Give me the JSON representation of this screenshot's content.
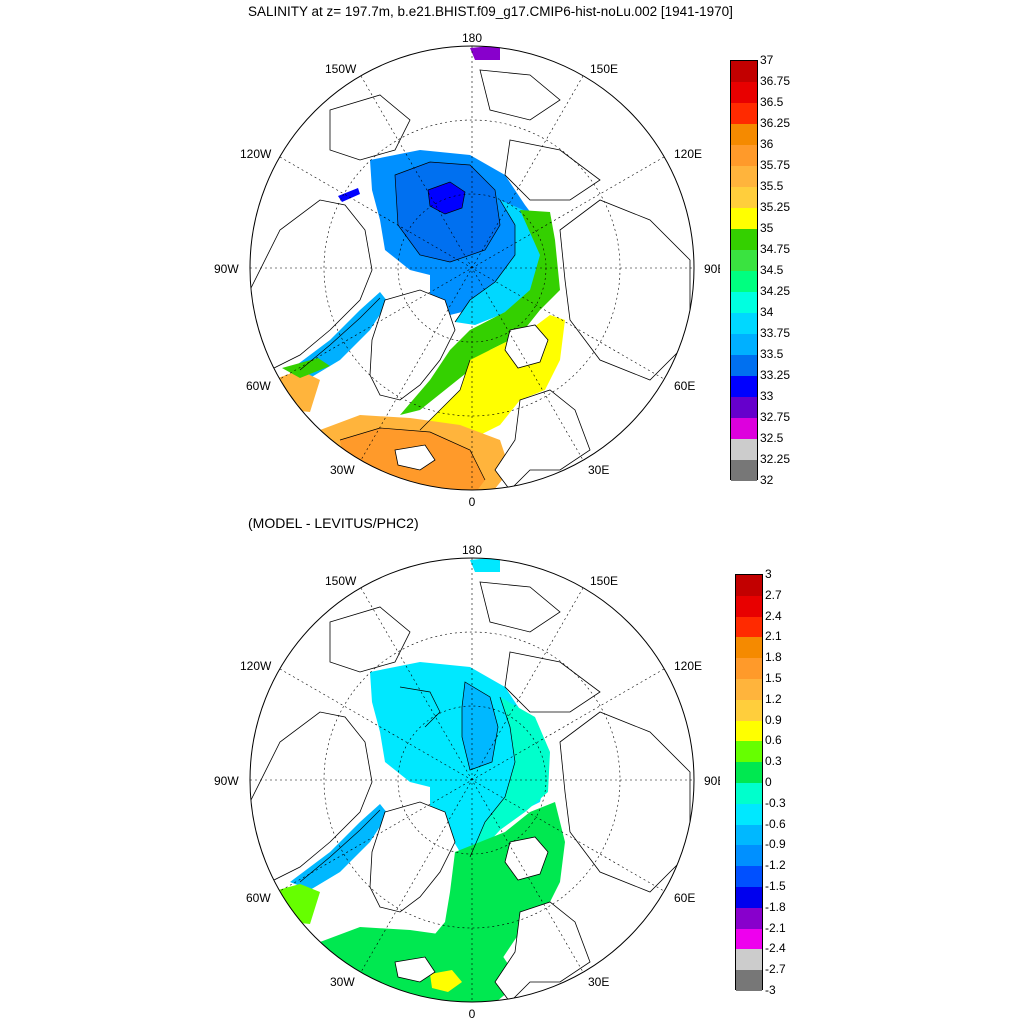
{
  "top_panel": {
    "title": "SALINITY at z= 197.7m, b.e21.BHIST.f09_g17.CMIP6-hist-noLu.002 [1941-1970]",
    "lon_labels": [
      "180",
      "150E",
      "120E",
      "90E",
      "60E",
      "30E",
      "0",
      "30W",
      "60W",
      "90W",
      "120W",
      "150W"
    ],
    "colorbar": {
      "labels": [
        "37",
        "36.75",
        "36.5",
        "36.25",
        "36",
        "35.75",
        "35.5",
        "35.25",
        "35",
        "34.75",
        "34.5",
        "34.25",
        "34",
        "33.75",
        "33.5",
        "33.25",
        "33",
        "32.75",
        "32.5",
        "32.25",
        "32"
      ],
      "colors": [
        "#c20000",
        "#e80000",
        "#ff2a00",
        "#f58a00",
        "#ff9a2a",
        "#ffb43c",
        "#ffce3c",
        "#ffff00",
        "#34d000",
        "#3ae340",
        "#00ff80",
        "#00ffe0",
        "#00d8ff",
        "#00b0ff",
        "#0070f0",
        "#0000ff",
        "#6600cc",
        "#dd00dd",
        "#cccccc",
        "#777777"
      ]
    }
  },
  "bottom_panel": {
    "title": "(MODEL - LEVITUS/PHC2)",
    "lon_labels": [
      "180",
      "150E",
      "120E",
      "90E",
      "60E",
      "30E",
      "0",
      "30W",
      "60W",
      "90W",
      "120W",
      "150W"
    ],
    "colorbar": {
      "labels": [
        "3",
        "2.7",
        "2.4",
        "2.1",
        "1.8",
        "1.5",
        "1.2",
        "0.9",
        "0.6",
        "0.3",
        "0",
        "-0.3",
        "-0.6",
        "-0.9",
        "-1.2",
        "-1.5",
        "-1.8",
        "-2.1",
        "-2.4",
        "-2.7",
        "-3"
      ],
      "colors": [
        "#c20000",
        "#e80000",
        "#ff2a00",
        "#f58a00",
        "#ff9a2a",
        "#ffb43c",
        "#ffce3c",
        "#ffff00",
        "#66ff00",
        "#00e850",
        "#00ffcc",
        "#00e8ff",
        "#00b8ff",
        "#0090ff",
        "#0050ff",
        "#0000ee",
        "#8800cc",
        "#ee00ee",
        "#cccccc",
        "#777777"
      ]
    }
  }
}
